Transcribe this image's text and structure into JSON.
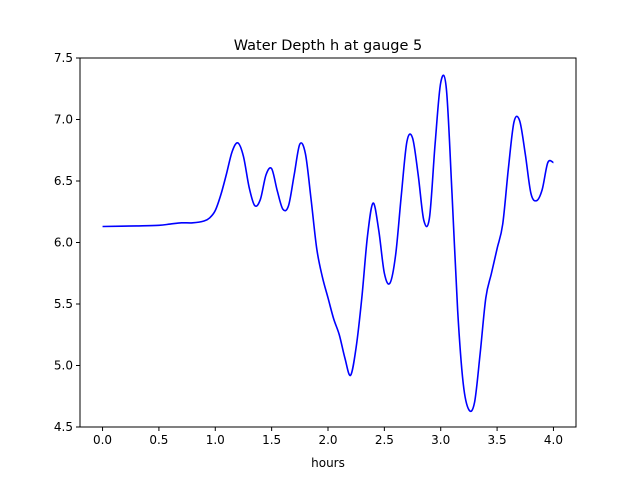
{
  "chart_data": {
    "type": "line",
    "title": "Water Depth h at gauge 5",
    "xlabel": "hours",
    "ylabel": "",
    "xlim": [
      -0.2,
      4.2
    ],
    "ylim": [
      4.5,
      7.5
    ],
    "xticks": [
      0.0,
      0.5,
      1.0,
      1.5,
      2.0,
      2.5,
      3.0,
      3.5,
      4.0
    ],
    "xtick_labels": [
      "0.0",
      "0.5",
      "1.0",
      "1.5",
      "2.0",
      "2.5",
      "3.0",
      "3.5",
      "4.0"
    ],
    "yticks": [
      4.5,
      5.0,
      5.5,
      6.0,
      6.5,
      7.0,
      7.5
    ],
    "ytick_labels": [
      "4.5",
      "5.0",
      "5.5",
      "6.0",
      "6.5",
      "7.0",
      "7.5"
    ],
    "grid": false,
    "series": [
      {
        "color": "#0000ff",
        "x": [
          0.0,
          0.3,
          0.5,
          0.6,
          0.7,
          0.8,
          0.9,
          0.95,
          1.0,
          1.05,
          1.1,
          1.15,
          1.2,
          1.25,
          1.3,
          1.35,
          1.4,
          1.45,
          1.5,
          1.55,
          1.6,
          1.65,
          1.7,
          1.75,
          1.8,
          1.85,
          1.9,
          1.95,
          2.0,
          2.05,
          2.1,
          2.15,
          2.2,
          2.25,
          2.3,
          2.35,
          2.4,
          2.45,
          2.5,
          2.55,
          2.6,
          2.65,
          2.7,
          2.75,
          2.8,
          2.85,
          2.9,
          2.95,
          3.0,
          3.05,
          3.1,
          3.15,
          3.2,
          3.25,
          3.3,
          3.35,
          3.4,
          3.45,
          3.5,
          3.55,
          3.6,
          3.65,
          3.7,
          3.75,
          3.8,
          3.85,
          3.9,
          3.95,
          4.0
        ],
        "y": [
          6.13,
          6.135,
          6.14,
          6.15,
          6.16,
          6.16,
          6.175,
          6.2,
          6.26,
          6.39,
          6.56,
          6.74,
          6.81,
          6.7,
          6.45,
          6.3,
          6.35,
          6.55,
          6.6,
          6.42,
          6.27,
          6.3,
          6.55,
          6.8,
          6.72,
          6.35,
          5.95,
          5.72,
          5.55,
          5.38,
          5.25,
          5.06,
          4.92,
          5.15,
          5.55,
          6.05,
          6.32,
          6.1,
          5.75,
          5.67,
          5.9,
          6.38,
          6.82,
          6.85,
          6.55,
          6.18,
          6.2,
          6.8,
          7.3,
          7.25,
          6.4,
          5.45,
          4.85,
          4.64,
          4.7,
          5.1,
          5.55,
          5.75,
          5.95,
          6.15,
          6.6,
          6.98,
          6.99,
          6.72,
          6.4,
          6.34,
          6.43,
          6.65,
          6.65
        ]
      }
    ]
  }
}
